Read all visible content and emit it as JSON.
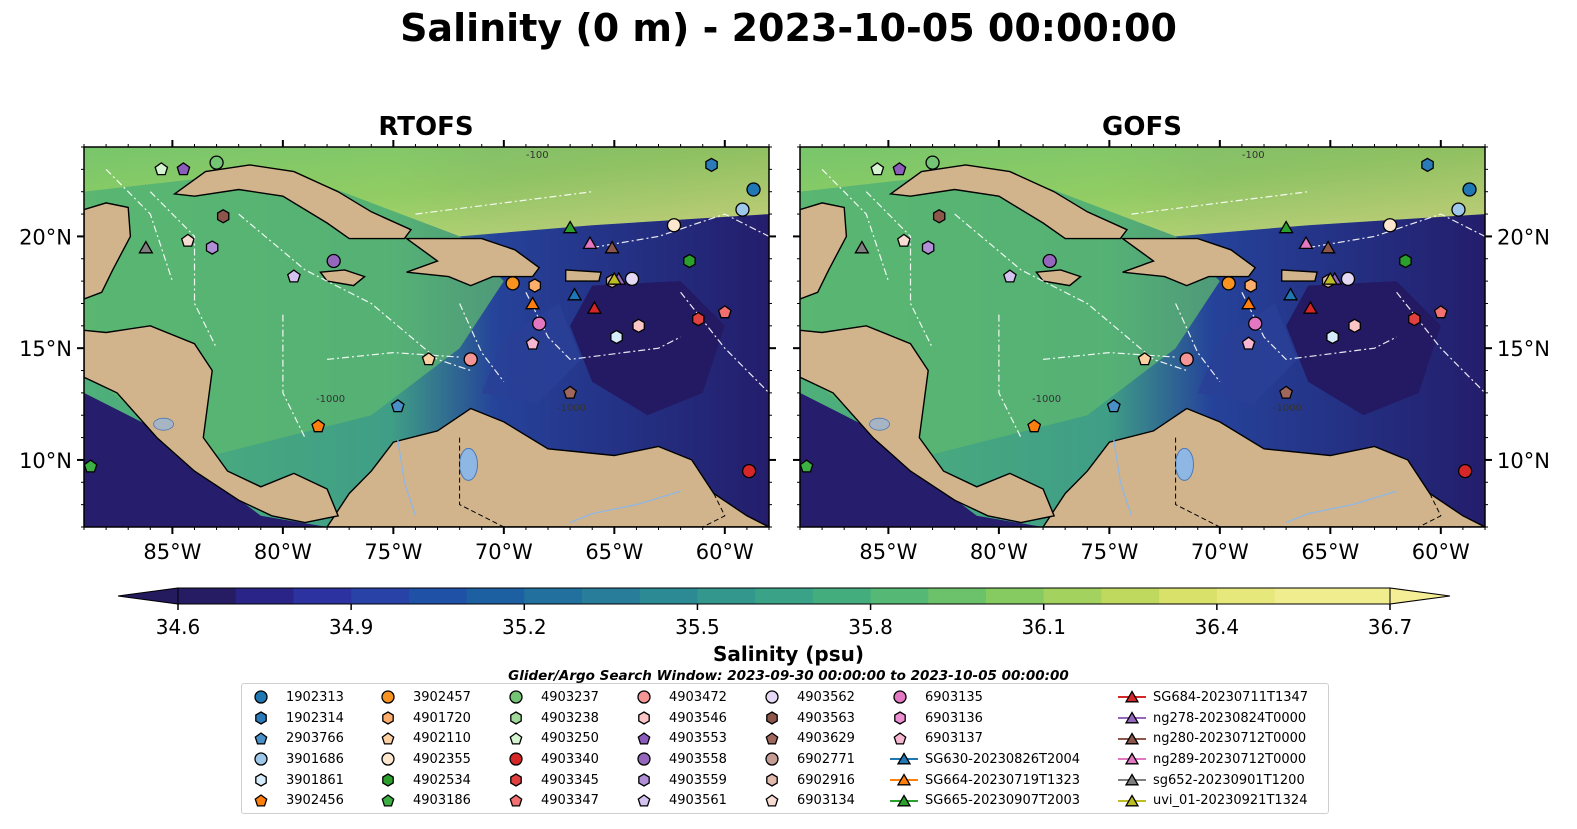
{
  "title": "Salinity (0 m) - 2023-10-05 00:00:00",
  "panels": [
    {
      "title": "RTOFS",
      "id": "rtofs"
    },
    {
      "title": "GOFS",
      "id": "gofs"
    }
  ],
  "axes": {
    "lon_ticks": [
      "85°W",
      "80°W",
      "75°W",
      "70°W",
      "65°W",
      "60°W"
    ],
    "lat_ticks": [
      "20°N",
      "15°N",
      "10°N"
    ],
    "lon_range": [
      -89,
      -58
    ],
    "lat_range": [
      7,
      24
    ]
  },
  "colorbar": {
    "label": "Salinity (psu)",
    "ticks": [
      "34.6",
      "34.9",
      "35.2",
      "35.5",
      "35.8",
      "36.1",
      "36.4",
      "36.7"
    ],
    "range": [
      34.6,
      36.7
    ],
    "extend": "both",
    "colormap": "haline"
  },
  "contour_labels": [
    "-100",
    "-1000",
    "-1000"
  ],
  "search_window": "Glider/Argo Search Window: 2023-09-30 00:00:00 to 2023-10-05 00:00:00",
  "legend": {
    "columns": [
      [
        {
          "label": "1902313",
          "marker": "circle",
          "color": "#1f77b4"
        },
        {
          "label": "1902314",
          "marker": "hexagon",
          "color": "#2b7bba"
        },
        {
          "label": "2903766",
          "marker": "pentagon",
          "color": "#4a90c8"
        },
        {
          "label": "3901686",
          "marker": "circle",
          "color": "#9ec8ea"
        },
        {
          "label": "3901861",
          "marker": "hexagon",
          "color": "#d6ecfb"
        },
        {
          "label": "3902456",
          "marker": "pentagon",
          "color": "#ff7f0e"
        }
      ],
      [
        {
          "label": "3902457",
          "marker": "circle",
          "color": "#f7931e"
        },
        {
          "label": "4901720",
          "marker": "hexagon",
          "color": "#fdae6b"
        },
        {
          "label": "4902110",
          "marker": "pentagon",
          "color": "#fdd0a2"
        },
        {
          "label": "4902355",
          "marker": "circle",
          "color": "#fde8cf"
        },
        {
          "label": "4902534",
          "marker": "hexagon",
          "color": "#2ca02c"
        },
        {
          "label": "4903186",
          "marker": "pentagon",
          "color": "#3cb043"
        }
      ],
      [
        {
          "label": "4903237",
          "marker": "circle",
          "color": "#74c476"
        },
        {
          "label": "4903238",
          "marker": "hexagon",
          "color": "#a1d99b"
        },
        {
          "label": "4903250",
          "marker": "pentagon",
          "color": "#d4f4cf"
        },
        {
          "label": "4903340",
          "marker": "circle",
          "color": "#d62728"
        },
        {
          "label": "4903345",
          "marker": "hexagon",
          "color": "#e0403f"
        },
        {
          "label": "4903347",
          "marker": "pentagon",
          "color": "#f2706f"
        }
      ],
      [
        {
          "label": "4903472",
          "marker": "circle",
          "color": "#f59595"
        },
        {
          "label": "4903546",
          "marker": "hexagon",
          "color": "#fcc6c6"
        },
        {
          "label": "4903553",
          "marker": "pentagon",
          "color": "#8c5cbd"
        },
        {
          "label": "4903558",
          "marker": "circle",
          "color": "#9467bd"
        },
        {
          "label": "4903559",
          "marker": "hexagon",
          "color": "#b08fd6"
        },
        {
          "label": "4903561",
          "marker": "pentagon",
          "color": "#d5c3ef"
        }
      ],
      [
        {
          "label": "4903562",
          "marker": "circle",
          "color": "#e4d8f5"
        },
        {
          "label": "4903563",
          "marker": "hexagon",
          "color": "#8c564b"
        },
        {
          "label": "4903629",
          "marker": "pentagon",
          "color": "#a0685c"
        },
        {
          "label": "6902771",
          "marker": "circle",
          "color": "#c49c94"
        },
        {
          "label": "6902916",
          "marker": "hexagon",
          "color": "#e2b9ad"
        },
        {
          "label": "6903134",
          "marker": "pentagon",
          "color": "#f7dcd3"
        }
      ],
      [
        {
          "label": "6903135",
          "marker": "circle",
          "color": "#e377c2"
        },
        {
          "label": "6903136",
          "marker": "hexagon",
          "color": "#ee8fd2"
        },
        {
          "label": "6903137",
          "marker": "pentagon",
          "color": "#f7b6d2"
        },
        {
          "label": "SG630-20230826T2004",
          "marker": "triangle",
          "color": "#1f77b4"
        },
        {
          "label": "SG664-20230719T1323",
          "marker": "triangle",
          "color": "#ff7f0e"
        },
        {
          "label": "SG665-20230907T2003",
          "marker": "triangle",
          "color": "#2ca02c"
        }
      ],
      [
        {
          "label": "SG684-20230711T1347",
          "marker": "triangle",
          "color": "#d62728"
        },
        {
          "label": "ng278-20230824T0000",
          "marker": "triangle",
          "color": "#9467bd"
        },
        {
          "label": "ng280-20230712T0000",
          "marker": "triangle",
          "color": "#8c564b"
        },
        {
          "label": "ng289-20230712T0000",
          "marker": "triangle",
          "color": "#e377c2"
        },
        {
          "label": "sg652-20230901T1200",
          "marker": "triangle",
          "color": "#7f7f7f"
        },
        {
          "label": "uvi_01-20230921T1324",
          "marker": "triangle",
          "color": "#bcbd22"
        }
      ]
    ]
  },
  "platforms": [
    {
      "label": "1902313",
      "lon": -58.7,
      "lat": 22.1
    },
    {
      "label": "1902314",
      "lon": -60.6,
      "lat": 23.2
    },
    {
      "label": "2903766",
      "lon": -74.8,
      "lat": 12.4
    },
    {
      "label": "3901686",
      "lon": -59.2,
      "lat": 21.2
    },
    {
      "label": "3901861",
      "lon": -64.9,
      "lat": 15.5
    },
    {
      "label": "3902456",
      "lon": -78.4,
      "lat": 11.5
    },
    {
      "label": "3902457",
      "lon": -69.6,
      "lat": 17.9
    },
    {
      "label": "4901720",
      "lon": -68.6,
      "lat": 17.8
    },
    {
      "label": "4902110",
      "lon": -73.4,
      "lat": 14.5
    },
    {
      "label": "4902355",
      "lon": -62.3,
      "lat": 20.5
    },
    {
      "label": "4902534",
      "lon": -61.6,
      "lat": 18.9
    },
    {
      "label": "4903186",
      "lon": -88.7,
      "lat": 9.7
    },
    {
      "label": "4903237",
      "lon": -83.0,
      "lat": 23.3
    },
    {
      "label": "4903250",
      "lon": -85.5,
      "lat": 23.0
    },
    {
      "label": "4903340",
      "lon": -58.9,
      "lat": 9.5
    },
    {
      "label": "4903345",
      "lon": -61.2,
      "lat": 16.3
    },
    {
      "label": "4903347",
      "lon": -60.0,
      "lat": 16.6
    },
    {
      "label": "4903472",
      "lon": -71.5,
      "lat": 14.5
    },
    {
      "label": "4903546",
      "lon": -63.9,
      "lat": 16.0
    },
    {
      "label": "4903553",
      "lon": -84.5,
      "lat": 23.0
    },
    {
      "label": "4903558",
      "lon": -77.7,
      "lat": 18.9
    },
    {
      "label": "4903559",
      "lon": -83.2,
      "lat": 19.5
    },
    {
      "label": "4903561",
      "lon": -79.5,
      "lat": 18.2
    },
    {
      "label": "4903562",
      "lon": -64.2,
      "lat": 18.1
    },
    {
      "label": "4903563",
      "lon": -82.7,
      "lat": 20.9
    },
    {
      "label": "4903629",
      "lon": -67.0,
      "lat": 13.0
    },
    {
      "label": "6902916",
      "lon": -65.1,
      "lat": 18.0
    },
    {
      "label": "6903134",
      "lon": -84.3,
      "lat": 19.8
    },
    {
      "label": "6903135",
      "lon": -68.4,
      "lat": 16.1
    },
    {
      "label": "6903137",
      "lon": -68.7,
      "lat": 15.2
    },
    {
      "label": "SG630-20230826T2004",
      "lon": -66.8,
      "lat": 17.4
    },
    {
      "label": "SG664-20230719T1323",
      "lon": -68.7,
      "lat": 17.0
    },
    {
      "label": "SG665-20230907T2003",
      "lon": -67.0,
      "lat": 20.4
    },
    {
      "label": "SG684-20230711T1347",
      "lon": -65.9,
      "lat": 16.8
    },
    {
      "label": "ng278-20230824T0000",
      "lon": -64.8,
      "lat": 18.1
    },
    {
      "label": "ng280-20230712T0000",
      "lon": -65.1,
      "lat": 19.5
    },
    {
      "label": "ng289-20230712T0000",
      "lon": -66.1,
      "lat": 19.7
    },
    {
      "label": "sg652-20230901T1200",
      "lon": -86.2,
      "lat": 19.5
    },
    {
      "label": "uvi_01-20230921T1324",
      "lon": -65.0,
      "lat": 18.1
    }
  ]
}
